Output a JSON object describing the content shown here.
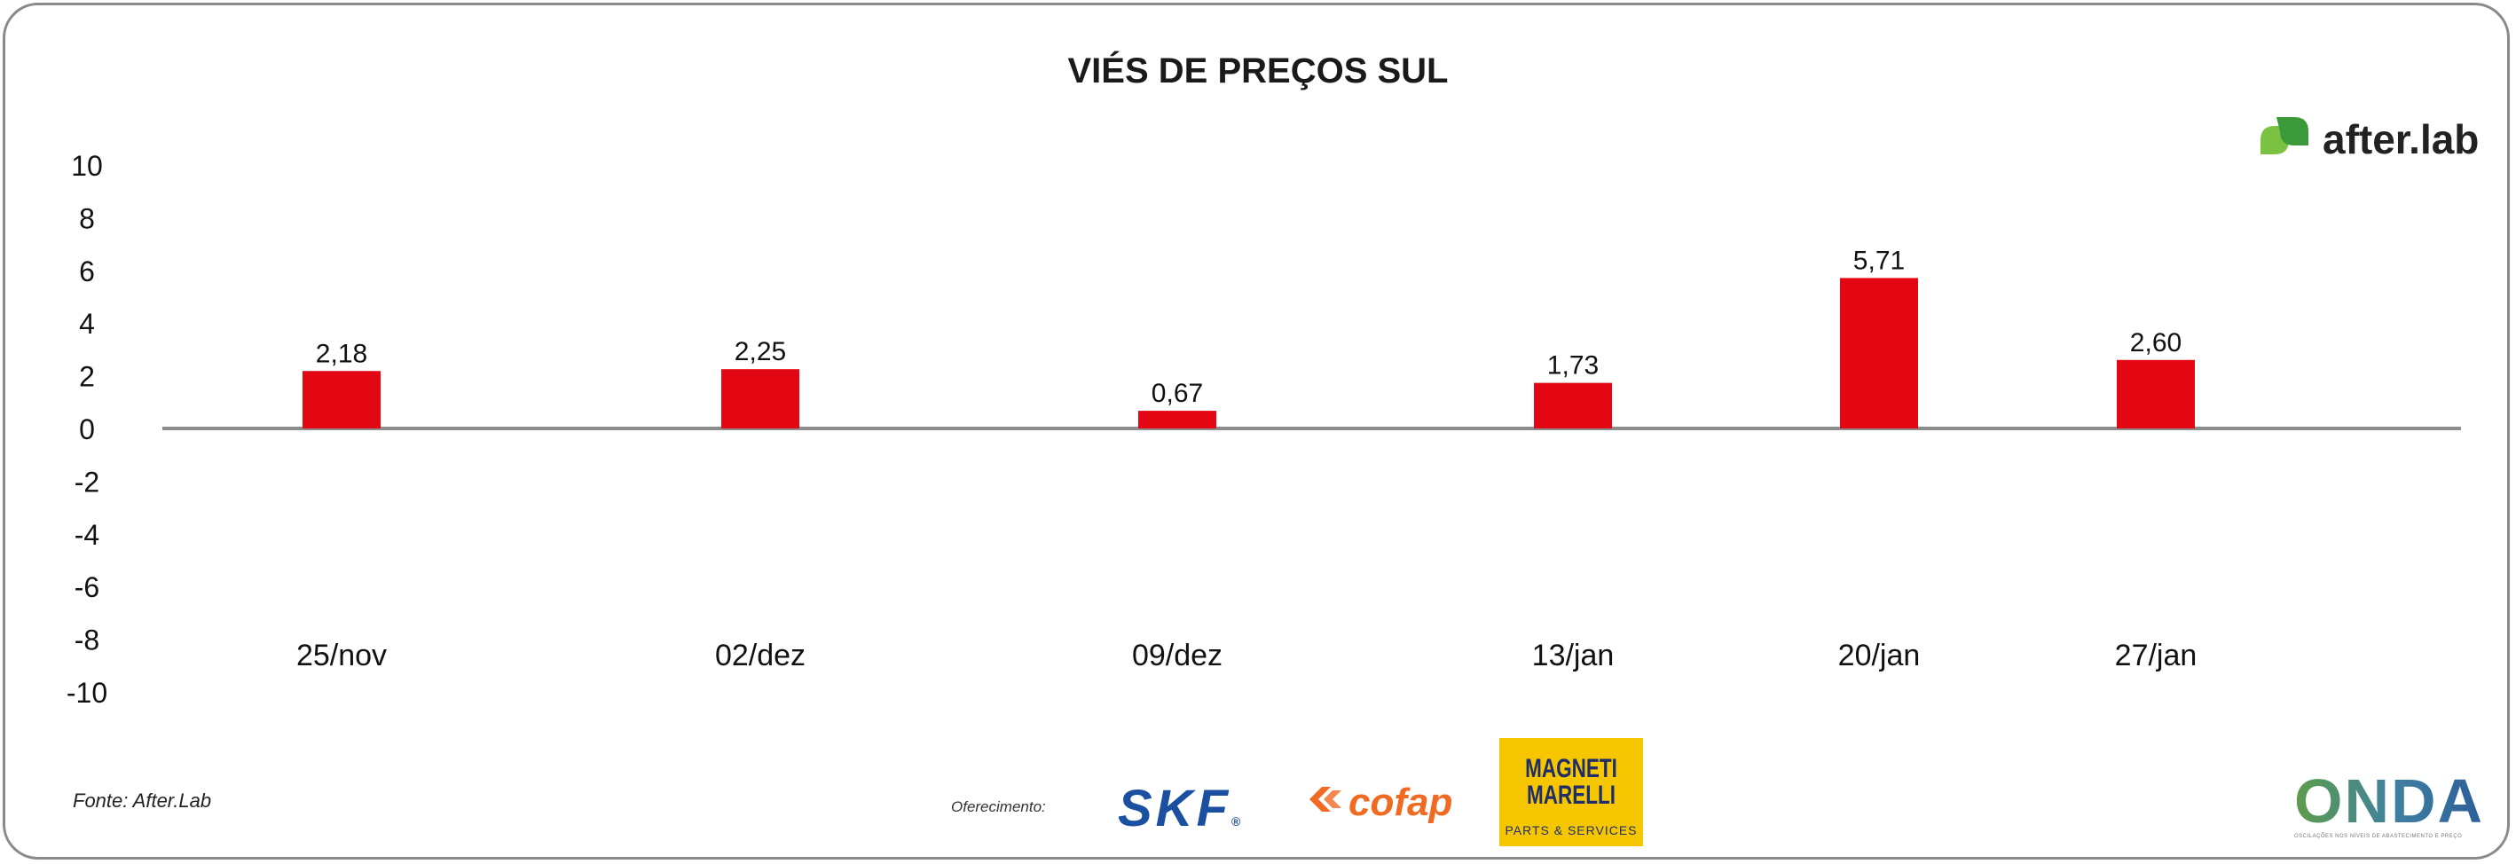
{
  "chart_data": {
    "type": "bar",
    "title": "VIÉS DE PREÇOS SUL",
    "categories": [
      "25/nov",
      "02/dez",
      "09/dez",
      "13/jan",
      "20/jan",
      "27/jan"
    ],
    "values": [
      2.18,
      2.25,
      0.67,
      1.73,
      5.71,
      2.6
    ],
    "value_labels": [
      "2,18",
      "2,25",
      "0,67",
      "1,73",
      "5,71",
      "2,60"
    ],
    "yticks": [
      "10",
      "8",
      "6",
      "4",
      "2",
      "0",
      "-2",
      "-4",
      "-6",
      "-8",
      "-10"
    ],
    "ylim": [
      -10,
      10
    ],
    "xlabel": "",
    "ylabel": "",
    "grid": false,
    "bar_color": "#e30613",
    "axis_color": "#8c8c8c"
  },
  "source": "Fonte: After.Lab",
  "sponsor_label": "Oferecimento:",
  "logos": {
    "afterlab": "after.lab",
    "skf": "SKF",
    "skf_reg": "®",
    "cofap": "cofap",
    "magneti_line1": "MAGNETI",
    "magneti_line2": "MARELLI",
    "magneti_sub": "PARTS & SERVICES",
    "onda": "ONDA",
    "onda_tagline": "OSCILAÇÕES NOS NÍVEIS DE ABASTECIMENTO E PREÇO"
  }
}
